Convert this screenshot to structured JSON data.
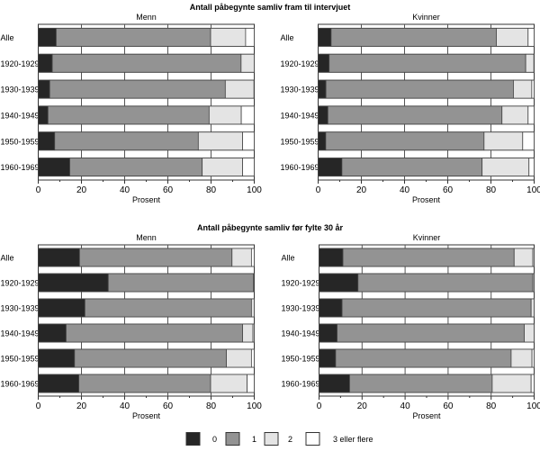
{
  "chart_data": [
    {
      "type": "bar",
      "orientation": "horizontal",
      "stacked": true,
      "group_title": "Antall påbegynte samliv fram til intervjuet",
      "title": "Menn",
      "xlabel": "Prosent",
      "xlim": [
        0,
        100
      ],
      "xticks": [
        "0",
        "20",
        "40",
        "60",
        "80",
        "100"
      ],
      "categories": [
        "Alle",
        "1920-1929",
        "1930-1939",
        "1940-1949",
        "1950-1959",
        "1960-1969"
      ],
      "series": [
        {
          "name": "0",
          "values": [
            8.3,
            6.5,
            5.3,
            4.5,
            7.6,
            14.6
          ]
        },
        {
          "name": "1",
          "values": [
            71.5,
            87.4,
            81.3,
            74.6,
            66.5,
            61.3
          ]
        },
        {
          "name": "2",
          "values": [
            16.2,
            6.1,
            13.3,
            14.9,
            20.5,
            18.7
          ]
        },
        {
          "name": "3 eller flere",
          "values": [
            4.0,
            0.0,
            0.1,
            6.0,
            5.4,
            5.4
          ]
        }
      ]
    },
    {
      "type": "bar",
      "orientation": "horizontal",
      "stacked": true,
      "title": "Kvinner",
      "xlabel": "Prosent",
      "xlim": [
        0,
        100
      ],
      "xticks": [
        "0",
        "20",
        "40",
        "60",
        "80",
        "100"
      ],
      "categories": [
        "Alle",
        "1920-1929",
        "1930-1939",
        "1940-1949",
        "1950-1959",
        "1960-1969"
      ],
      "series": [
        {
          "name": "0",
          "values": [
            6.0,
            5.1,
            3.6,
            4.5,
            3.5,
            11.0
          ]
        },
        {
          "name": "1",
          "values": [
            76.5,
            91.0,
            86.8,
            80.6,
            73.3,
            64.9
          ]
        },
        {
          "name": "2",
          "values": [
            14.7,
            3.8,
            8.5,
            12.1,
            17.9,
            21.7
          ]
        },
        {
          "name": "3 eller flere",
          "values": [
            2.8,
            0.1,
            1.1,
            2.8,
            5.3,
            2.4
          ]
        }
      ]
    },
    {
      "type": "bar",
      "orientation": "horizontal",
      "stacked": true,
      "group_title": "Antall påbegynte samliv før fylte 30 år",
      "title": "Menn",
      "xlabel": "Prosent",
      "xlim": [
        0,
        100
      ],
      "xticks": [
        "0",
        "20",
        "40",
        "60",
        "80",
        "100"
      ],
      "categories": [
        "Alle",
        "1920-1929",
        "1930-1939",
        "1940-1949",
        "1950-1959",
        "1960-1969"
      ],
      "series": [
        {
          "name": "0",
          "values": [
            19.1,
            32.4,
            21.6,
            12.9,
            16.8,
            18.8
          ]
        },
        {
          "name": "1",
          "values": [
            70.6,
            67.3,
            77.1,
            81.7,
            70.3,
            61.0
          ]
        },
        {
          "name": "2",
          "values": [
            9.0,
            0.3,
            1.3,
            4.8,
            11.6,
            16.9
          ]
        },
        {
          "name": "3 eller flere",
          "values": [
            1.3,
            0.0,
            0.0,
            0.6,
            1.3,
            3.3
          ]
        }
      ]
    },
    {
      "type": "bar",
      "orientation": "horizontal",
      "stacked": true,
      "title": "Kvinner",
      "xlabel": "Prosent",
      "xlim": [
        0,
        100
      ],
      "xticks": [
        "0",
        "20",
        "40",
        "60",
        "80",
        "100"
      ],
      "categories": [
        "Alle",
        "1920-1929",
        "1930-1939",
        "1940-1949",
        "1950-1959",
        "1960-1969"
      ],
      "series": [
        {
          "name": "0",
          "values": [
            11.1,
            18.1,
            10.7,
            8.4,
            7.7,
            14.2
          ]
        },
        {
          "name": "1",
          "values": [
            79.6,
            81.3,
            87.9,
            87.0,
            81.6,
            66.3
          ]
        },
        {
          "name": "2",
          "values": [
            8.7,
            0.6,
            1.4,
            4.6,
            9.7,
            18.1
          ]
        },
        {
          "name": "3 eller flere",
          "values": [
            0.6,
            0.0,
            0.0,
            0.0,
            1.0,
            1.4
          ]
        }
      ]
    }
  ],
  "legend": {
    "placement": "bottom",
    "items": [
      {
        "label": "0",
        "color": "#262626"
      },
      {
        "label": "1",
        "color": "#939393"
      },
      {
        "label": "2",
        "color": "#e4e4e4"
      },
      {
        "label": "3 eller flere",
        "color": "#ffffff"
      }
    ]
  }
}
